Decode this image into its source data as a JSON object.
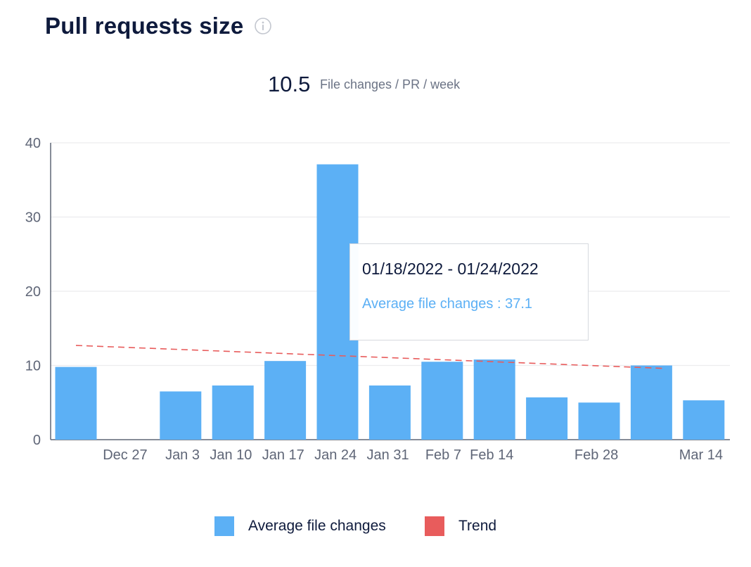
{
  "header": {
    "title": "Pull requests size"
  },
  "summary": {
    "value": "10.5",
    "unit": "File changes / PR / week"
  },
  "tooltip": {
    "range": "01/18/2022 - 01/24/2022",
    "value_text": "Average file changes : 37.1"
  },
  "legend": {
    "items": [
      {
        "label": "Average file changes",
        "color": "#5cb0f5"
      },
      {
        "label": "Trend",
        "color": "#e85c5c"
      }
    ]
  },
  "chart_data": {
    "type": "bar",
    "title": "",
    "xlabel": "",
    "ylabel": "",
    "ylim": [
      0,
      40
    ],
    "yticks": [
      0,
      10,
      20,
      30,
      40
    ],
    "grid": true,
    "legend_position": "bottom",
    "categories": [
      "",
      "Dec 27",
      "Jan 3",
      "Jan 10",
      "Jan 17",
      "Jan 24",
      "Jan 31",
      "Feb 7",
      "Feb 14",
      "",
      "Feb 28",
      "",
      "Mar 14"
    ],
    "series": [
      {
        "name": "Average file changes",
        "type": "bar",
        "color": "#5cb0f5",
        "values": [
          9.8,
          0,
          6.5,
          7.3,
          10.6,
          37.1,
          7.3,
          10.5,
          10.8,
          5.7,
          5.0,
          10.0,
          5.3
        ]
      },
      {
        "name": "Trend",
        "type": "line",
        "dashed": true,
        "color": "#e85c5c",
        "start_index": 0,
        "end_index": 11,
        "start_value": 12.7,
        "end_value": 9.6
      }
    ]
  }
}
